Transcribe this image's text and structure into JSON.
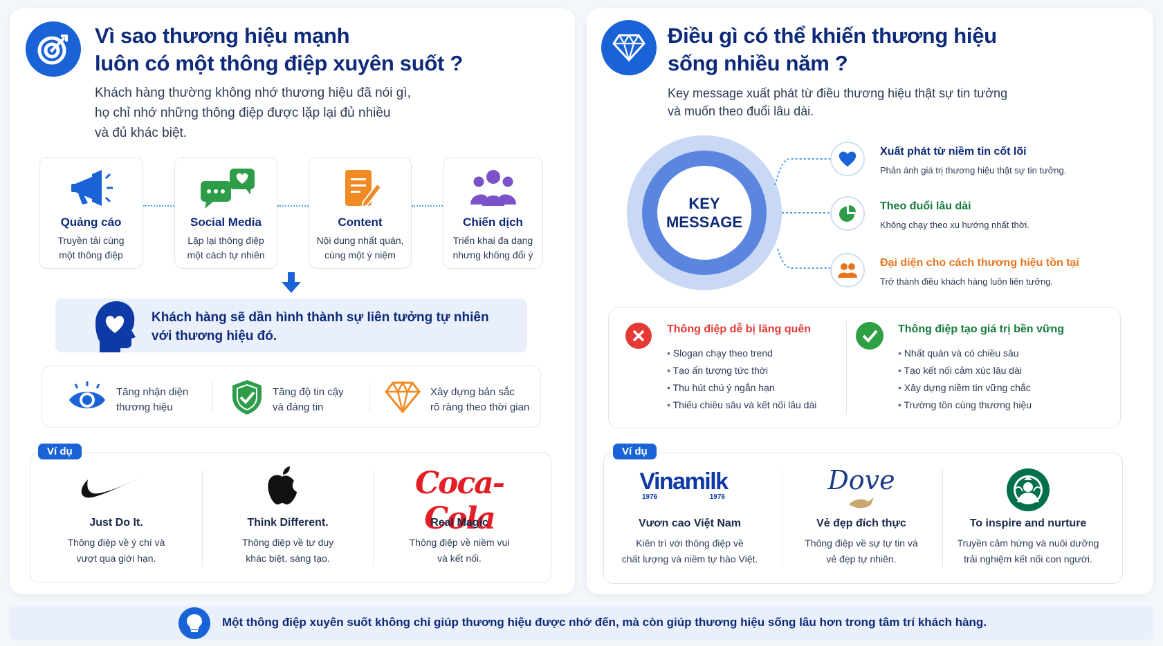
{
  "left": {
    "title_line1": "Vì sao thương hiệu mạnh",
    "title_line2": "luôn có một thông điệp xuyên suốt ?",
    "subtitle_line1": "Khách hàng thường không nhớ thương hiệu đã nói gì,",
    "subtitle_line2": "họ chỉ nhớ những thông điệp được lặp lại đủ nhiều",
    "subtitle_line3": "và đủ khác biệt.",
    "channels": [
      {
        "title": "Quảng cáo",
        "desc1": "Truyền tải cùng",
        "desc2": "một thông điệp",
        "icon": "megaphone-icon"
      },
      {
        "title": "Social Media",
        "desc1": "Lặp lại thông điệp",
        "desc2": "một cách tự nhiên",
        "icon": "chat-heart-icon"
      },
      {
        "title": "Content",
        "desc1": "Nội dung nhất quán,",
        "desc2": "cùng một ý niệm",
        "icon": "document-pen-icon"
      },
      {
        "title": "Chiến dịch",
        "desc1": "Triển khai đa dạng",
        "desc2": "nhưng không đổi ý",
        "icon": "people-group-icon"
      }
    ],
    "result_line1": "Khách hàng sẽ dần hình thành sự liên tưởng tự nhiên",
    "result_line2": "với thương hiệu đó.",
    "benefits": [
      {
        "line1": "Tăng nhận diện",
        "line2": "thương hiệu",
        "icon": "eye-icon"
      },
      {
        "line1": "Tăng độ tin cậy",
        "line2": "và đáng tin",
        "icon": "shield-check-icon"
      },
      {
        "line1": "Xây dựng bản sắc",
        "line2": "rõ ràng theo thời gian",
        "icon": "diamond-icon"
      }
    ],
    "example_tag": "Ví dụ",
    "examples": [
      {
        "title": "Just Do It.",
        "desc1": "Thông điệp về ý chí và",
        "desc2": "vượt qua giới hạn.",
        "logo": "nike-swoosh"
      },
      {
        "title": "Think Different.",
        "desc1": "Thông điệp về tư duy",
        "desc2": "khác biệt, sáng tạo.",
        "logo": "apple-logo"
      },
      {
        "title": "Real Magic",
        "desc1": "Thông điệp về niềm vui",
        "desc2": "và kết nối.",
        "logo_text": "Coca-Cola"
      }
    ]
  },
  "right": {
    "title_line1": "Điều gì có thể khiến thương hiệu",
    "title_line2": "sống nhiều năm ?",
    "subtitle_line1": "Key message xuất phát từ điều thương hiệu thật sự tin tưởng",
    "subtitle_line2": "và muốn theo đuổi lâu dài.",
    "center_line1": "KEY",
    "center_line2": "MESSAGE",
    "points": [
      {
        "title": "Xuất phát từ niềm tin cốt lõi",
        "desc": "Phản ánh giá trị thương hiệu thật sự tin tưởng.",
        "color": "#0d2a7a",
        "icon": "heart-icon"
      },
      {
        "title": "Theo đuổi lâu dài",
        "desc": "Không chạy theo xu hướng nhất thời.",
        "color": "#137a3a",
        "icon": "pie-chart-icon"
      },
      {
        "title": "Đại diện cho cách thương hiệu tồn tại",
        "desc": "Trở thành điều khách hàng luôn liên tưởng.",
        "color": "#e8741a",
        "icon": "people-icon"
      }
    ],
    "bad": {
      "title": "Thông điệp dễ bị lãng quên",
      "items": [
        "Slogan chạy theo trend",
        "Tạo ấn tượng tức thời",
        "Thu hút chú ý ngắn hạn",
        "Thiếu chiều sâu và kết nối lâu dài"
      ]
    },
    "good": {
      "title": "Thông điệp tạo giá trị bền vững",
      "items": [
        "Nhất quán và có chiều sâu",
        "Tạo kết nối cảm xúc lâu dài",
        "Xây dựng niềm tin vững chắc",
        "Trường tồn cùng thương hiệu"
      ]
    },
    "example_tag": "Ví dụ",
    "examples": [
      {
        "title": "Vươn cao Việt Nam",
        "desc1": "Kiên trì với thông điệp về",
        "desc2": "chất lượng và niềm tự hào Việt.",
        "logo_text": "Vinamilk",
        "logo_year_left": "1976",
        "logo_year_right": "1976"
      },
      {
        "title": "Vẻ đẹp đích thực",
        "desc1": "Thông điệp về sự tự tin và",
        "desc2": "vẻ đẹp tự nhiên.",
        "logo_text": "Dove"
      },
      {
        "title": "To inspire and nurture",
        "desc1": "Truyền cảm hứng và nuôi dưỡng",
        "desc2": "trải nghiệm kết nối con người.",
        "logo": "starbucks-siren"
      }
    ]
  },
  "footer": {
    "text": "Một thông điệp xuyên suốt không chỉ giúp thương hiệu được nhớ đến, mà còn giúp thương hiệu sống lâu hơn trong tâm trí khách hàng.",
    "icon": "lightbulb-icon"
  },
  "colors": {
    "primary": "#1a63d6",
    "navy": "#0d2a7a",
    "red": "#e53935",
    "green": "#2ea043",
    "orange": "#e8741a"
  }
}
